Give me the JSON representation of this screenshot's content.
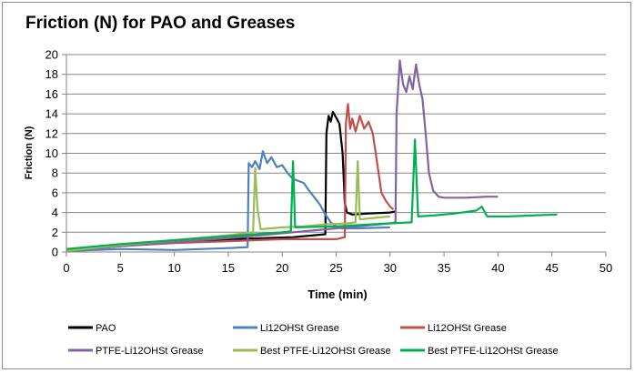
{
  "chart_data": {
    "type": "line",
    "title": "Friction (N) for PAO and Greases",
    "xlabel": "Time (min)",
    "ylabel": "Friction (N)",
    "xlim": [
      0,
      50
    ],
    "ylim": [
      0,
      20
    ],
    "xticks": [
      "0",
      "5",
      "10",
      "15",
      "20",
      "25",
      "30",
      "35",
      "40",
      "45",
      "50"
    ],
    "yticks": [
      "0",
      "2",
      "4",
      "6",
      "8",
      "10",
      "12",
      "14",
      "16",
      "18",
      "20"
    ],
    "grid": "horizontal",
    "legend_position": "bottom",
    "series": [
      {
        "name": "PAO",
        "color": "#000000",
        "points": [
          [
            0,
            0.2
          ],
          [
            3,
            0.4
          ],
          [
            6,
            0.7
          ],
          [
            9,
            0.9
          ],
          [
            12,
            1.1
          ],
          [
            15,
            1.3
          ],
          [
            18,
            1.4
          ],
          [
            21,
            1.5
          ],
          [
            24,
            1.8
          ],
          [
            24.1,
            12.0
          ],
          [
            24.3,
            13.8
          ],
          [
            24.5,
            13.2
          ],
          [
            24.7,
            14.2
          ],
          [
            25.0,
            13.6
          ],
          [
            25.3,
            13.0
          ],
          [
            25.6,
            10.0
          ],
          [
            25.8,
            5.0
          ],
          [
            26.0,
            4.0
          ],
          [
            26.5,
            3.8
          ],
          [
            28,
            3.9
          ],
          [
            30,
            4.0
          ],
          [
            30.5,
            4.1
          ]
        ]
      },
      {
        "name": "Li12OHSt Grease",
        "color": "#4f81bd",
        "points": [
          [
            0,
            0.1
          ],
          [
            5,
            0.3
          ],
          [
            10,
            0.2
          ],
          [
            15,
            0.4
          ],
          [
            16.8,
            0.5
          ],
          [
            16.9,
            9.0
          ],
          [
            17.2,
            8.6
          ],
          [
            17.5,
            9.2
          ],
          [
            17.9,
            8.4
          ],
          [
            18.2,
            10.2
          ],
          [
            18.6,
            9.0
          ],
          [
            19.0,
            9.6
          ],
          [
            19.5,
            8.6
          ],
          [
            20.0,
            8.8
          ],
          [
            20.5,
            8.0
          ],
          [
            21.0,
            7.4
          ],
          [
            21.5,
            7.2
          ],
          [
            22.0,
            7.0
          ],
          [
            22.5,
            6.2
          ],
          [
            23.0,
            5.5
          ],
          [
            23.5,
            4.8
          ],
          [
            24.0,
            3.8
          ],
          [
            24.5,
            3.0
          ],
          [
            25.0,
            2.6
          ],
          [
            25.5,
            2.4
          ],
          [
            27,
            2.4
          ],
          [
            30,
            2.5
          ]
        ]
      },
      {
        "name": "Li12OHSt Grease",
        "color": "#c0504d",
        "points": [
          [
            0,
            0.2
          ],
          [
            5,
            0.6
          ],
          [
            10,
            0.9
          ],
          [
            15,
            1.1
          ],
          [
            20,
            1.3
          ],
          [
            25,
            1.3
          ],
          [
            25.8,
            1.5
          ],
          [
            25.9,
            13.0
          ],
          [
            26.1,
            15.0
          ],
          [
            26.3,
            12.5
          ],
          [
            26.5,
            13.5
          ],
          [
            26.8,
            12.2
          ],
          [
            27.2,
            13.8
          ],
          [
            27.6,
            12.5
          ],
          [
            28.0,
            13.2
          ],
          [
            28.4,
            12.0
          ],
          [
            28.8,
            9.0
          ],
          [
            29.2,
            6.0
          ],
          [
            29.6,
            5.2
          ],
          [
            30.0,
            4.6
          ],
          [
            30.3,
            4.3
          ]
        ]
      },
      {
        "name": "PTFE-Li12OHSt Grease",
        "color": "#8064a2",
        "points": [
          [
            0,
            0.1
          ],
          [
            5,
            0.6
          ],
          [
            10,
            1.0
          ],
          [
            15,
            1.4
          ],
          [
            20,
            1.9
          ],
          [
            25,
            2.4
          ],
          [
            30,
            2.9
          ],
          [
            30.5,
            3.0
          ],
          [
            30.6,
            14.0
          ],
          [
            30.9,
            19.4
          ],
          [
            31.2,
            17.0
          ],
          [
            31.5,
            16.2
          ],
          [
            31.8,
            17.8
          ],
          [
            32.1,
            16.5
          ],
          [
            32.4,
            19.0
          ],
          [
            32.7,
            17.0
          ],
          [
            33.0,
            15.5
          ],
          [
            33.3,
            12.0
          ],
          [
            33.6,
            8.0
          ],
          [
            34.0,
            6.2
          ],
          [
            34.5,
            5.6
          ],
          [
            35,
            5.5
          ],
          [
            37,
            5.5
          ],
          [
            39,
            5.6
          ],
          [
            40,
            5.6
          ]
        ]
      },
      {
        "name": "Best PTFE-Li12OHSt Grease",
        "color": "#9bbb59",
        "points": [
          [
            0,
            0.1
          ],
          [
            5,
            0.7
          ],
          [
            10,
            1.2
          ],
          [
            15,
            1.7
          ],
          [
            17.3,
            2.0
          ],
          [
            17.5,
            8.5
          ],
          [
            17.7,
            4.5
          ],
          [
            18,
            2.3
          ],
          [
            20,
            2.5
          ],
          [
            22,
            2.6
          ],
          [
            24,
            2.8
          ],
          [
            26,
            2.9
          ],
          [
            26.8,
            3.0
          ],
          [
            27.0,
            9.2
          ],
          [
            27.2,
            3.3
          ],
          [
            28,
            3.4
          ],
          [
            30,
            3.6
          ]
        ]
      },
      {
        "name": "Best PTFE-Li12OHSt Grease",
        "color": "#00b050",
        "points": [
          [
            0,
            0.3
          ],
          [
            5,
            0.8
          ],
          [
            10,
            1.2
          ],
          [
            15,
            1.6
          ],
          [
            20,
            2.0
          ],
          [
            20.8,
            2.1
          ],
          [
            21.0,
            9.2
          ],
          [
            21.2,
            2.5
          ],
          [
            25,
            2.6
          ],
          [
            30,
            2.9
          ],
          [
            32,
            3.0
          ],
          [
            32.3,
            11.4
          ],
          [
            32.6,
            3.6
          ],
          [
            34,
            3.7
          ],
          [
            36,
            3.9
          ],
          [
            38,
            4.2
          ],
          [
            38.5,
            4.6
          ],
          [
            39.0,
            3.6
          ],
          [
            41,
            3.6
          ],
          [
            43,
            3.7
          ],
          [
            45.5,
            3.8
          ]
        ]
      }
    ]
  }
}
